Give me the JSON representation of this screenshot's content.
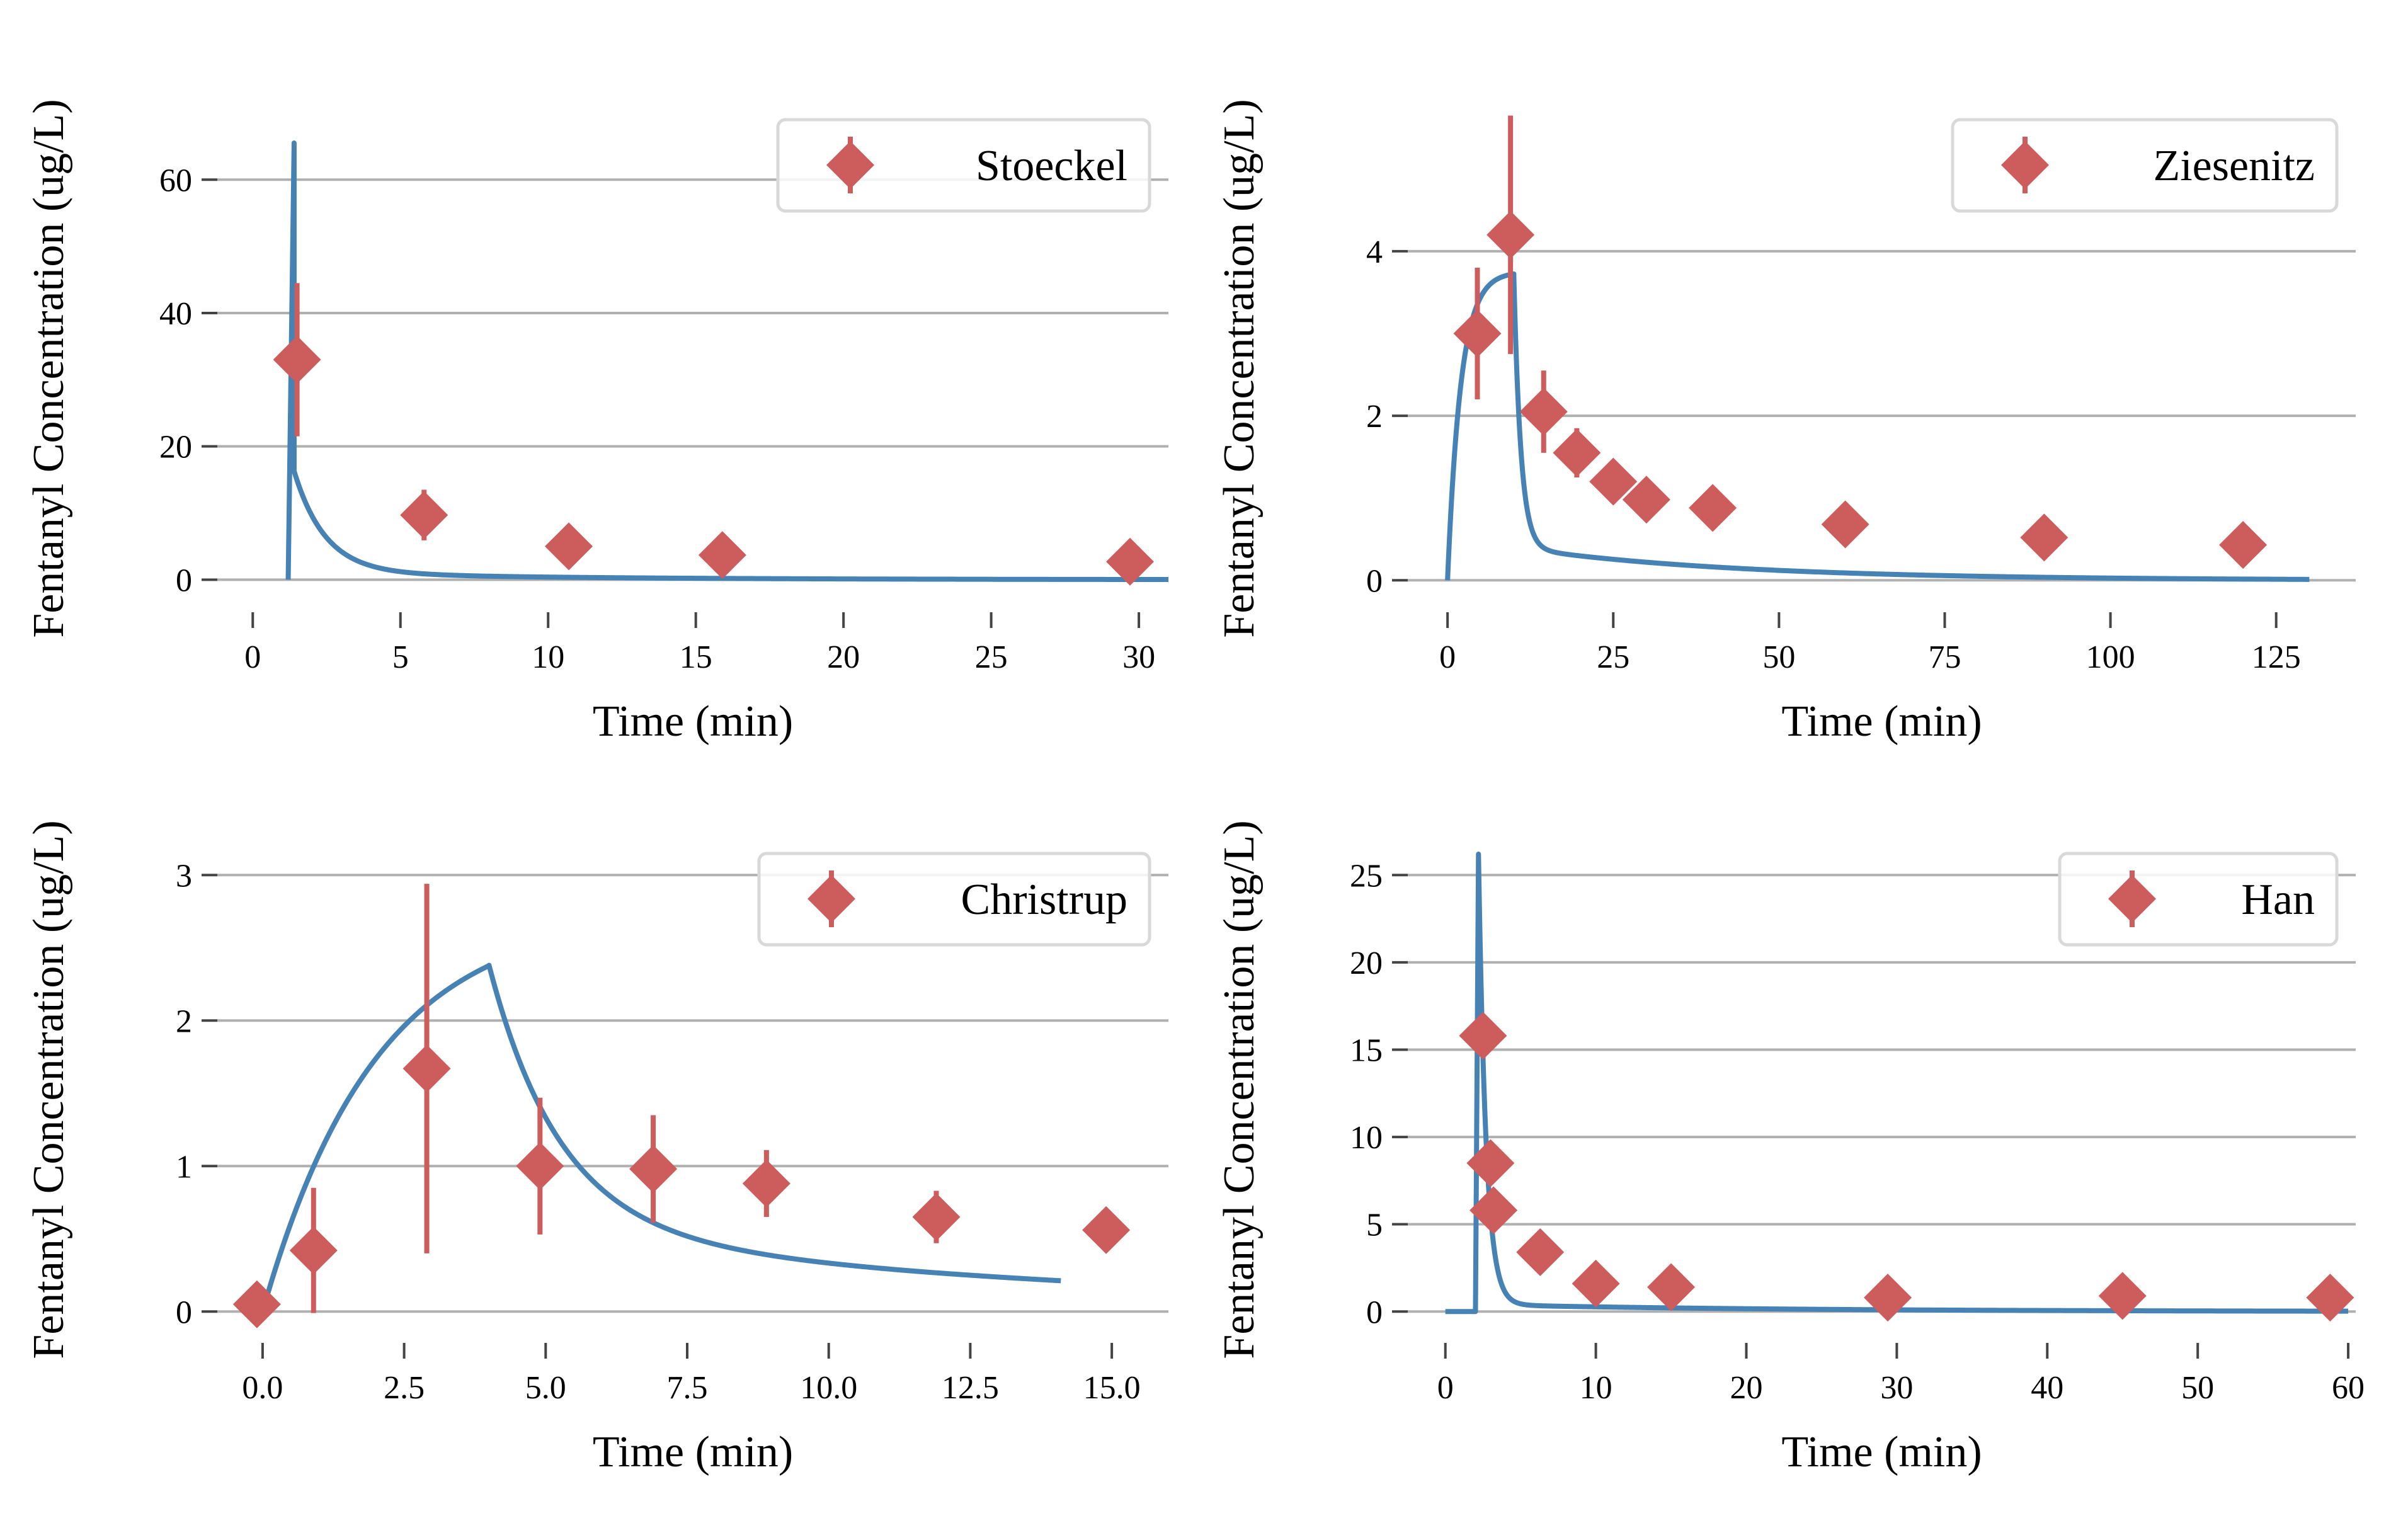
{
  "colors": {
    "model_line": "#4682b4",
    "observed_marker": "#cd5c5c",
    "gridline": "#b0b0b0",
    "axis_tick": "#444444",
    "legend_border": "#d9d9d9"
  },
  "chart_data": [
    {
      "type": "line",
      "xlabel": "Time (min)",
      "ylabel": "Fentanyl Concentration (ug/L)",
      "xlim": [
        -1.2,
        31
      ],
      "ylim": [
        -2.8,
        69
      ],
      "xticks": [
        0,
        5,
        10,
        15,
        20,
        25,
        30
      ],
      "xtick_labels": [
        "0",
        "5",
        "10",
        "15",
        "20",
        "25",
        "30"
      ],
      "yticks": [
        0,
        20,
        40,
        60
      ],
      "ytick_labels": [
        "0",
        "20",
        "40",
        "60"
      ],
      "grid": "y-major",
      "legend": {
        "position": "upper-right",
        "entries": [
          "Stoeckel"
        ]
      },
      "model": {
        "kind": "bolus",
        "t0": 1.2,
        "tpeak": 1.4,
        "peak": 65.5,
        "end": 31,
        "decay": [
          [
            15.2,
            0.95
          ],
          [
            1.1,
            0.12
          ]
        ],
        "x": [
          1.2,
          1.4,
          1.6,
          2,
          3,
          5,
          8,
          10,
          15,
          20,
          25,
          30,
          31
        ],
        "y": [
          0,
          65.5,
          27.9,
          19.1,
          9.4,
          2.6,
          0.83,
          0.64,
          0.38,
          0.25,
          0.18,
          0.12,
          0.11
        ]
      },
      "observed": {
        "name": "Stoeckel",
        "x": [
          1.5,
          5.8,
          10.7,
          15.9,
          29.7
        ],
        "y": [
          33,
          9.7,
          5.0,
          3.7,
          2.7
        ],
        "err": [
          11.5,
          3.8,
          1.5,
          1.2,
          0.6
        ]
      }
    },
    {
      "type": "line",
      "xlabel": "Time (min)",
      "ylabel": "Fentanyl Concentration (ug/L)",
      "xlim": [
        -6,
        137
      ],
      "ylim": [
        -0.22,
        5.6
      ],
      "xticks": [
        0,
        25,
        50,
        75,
        100,
        125
      ],
      "xtick_labels": [
        "0",
        "25",
        "50",
        "75",
        "100",
        "125"
      ],
      "yticks": [
        0,
        2,
        4
      ],
      "ytick_labels": [
        "0",
        "2",
        "4"
      ],
      "grid": "y-major",
      "legend": {
        "position": "upper-right",
        "entries": [
          "Ziesenitz"
        ]
      },
      "model": {
        "kind": "infusion",
        "t0": 0,
        "tend": 10,
        "plateau": 3.75,
        "rise": 0.5,
        "end": 130,
        "decay": [
          [
            3.3,
            0.95
          ],
          [
            0.4,
            0.03
          ]
        ],
        "x": [
          0,
          2,
          5,
          8,
          10,
          12,
          15,
          20,
          30,
          50,
          75,
          100,
          130
        ],
        "y": [
          0,
          2.4,
          3.4,
          3.6,
          3.7,
          1.05,
          0.42,
          0.33,
          0.25,
          0.13,
          0.08,
          0.06,
          0.05
        ]
      },
      "observed": {
        "name": "Ziesenitz",
        "x": [
          4.5,
          9.5,
          14.5,
          19.5,
          25,
          30,
          40,
          60,
          90,
          120
        ],
        "y": [
          3.0,
          4.2,
          2.05,
          1.55,
          1.2,
          0.98,
          0.88,
          0.68,
          0.52,
          0.43
        ],
        "err": [
          0.8,
          1.45,
          0.5,
          0.3,
          0.25,
          0.15,
          0.1,
          0.08,
          0.07,
          0.05
        ]
      }
    },
    {
      "type": "line",
      "xlabel": "Time (min)",
      "ylabel": "Fentanyl Concentration (ug/L)",
      "xlim": [
        -0.8,
        16
      ],
      "ylim": [
        -0.12,
        3.3
      ],
      "xticks": [
        0,
        2.5,
        5,
        7.5,
        10,
        12.5,
        15
      ],
      "xtick_labels": [
        "0.0",
        "2.5",
        "5.0",
        "7.5",
        "10.0",
        "12.5",
        "15.0"
      ],
      "yticks": [
        0,
        1,
        2,
        3
      ],
      "ytick_labels": [
        "0",
        "1",
        "2",
        "3"
      ],
      "grid": "y-major",
      "legend": {
        "position": "upper-right",
        "entries": [
          "Christrup"
        ]
      },
      "model": {
        "kind": "infusion",
        "t0": 0,
        "tend": 4,
        "plateau": 2.75,
        "rise": 0.5,
        "end": 14.1,
        "decay": [
          [
            1.8,
            0.8
          ],
          [
            0.58,
            0.1
          ]
        ],
        "x": [
          0,
          0.5,
          1,
          2,
          3,
          4,
          5,
          6,
          7,
          8,
          10,
          12,
          14.1
        ],
        "y": [
          0,
          0.6,
          1.1,
          1.74,
          2.13,
          2.38,
          1.35,
          0.79,
          0.5,
          0.34,
          0.19,
          0.12,
          0.09
        ]
      },
      "observed": {
        "name": "Christrup",
        "x": [
          -0.1,
          0.9,
          2.9,
          4.9,
          6.9,
          8.9,
          11.9,
          14.9
        ],
        "y": [
          0.05,
          0.42,
          1.67,
          1.0,
          0.98,
          0.88,
          0.65,
          0.56
        ],
        "err": [
          0.0,
          0.43,
          1.27,
          0.47,
          0.37,
          0.23,
          0.18,
          0.0
        ]
      }
    },
    {
      "type": "line",
      "xlabel": "Time (min)",
      "ylabel": "Fentanyl Concentration (ug/L)",
      "xlim": [
        -2.5,
        60.5
      ],
      "ylim": [
        -1.0,
        27.5
      ],
      "xticks": [
        0,
        10,
        20,
        30,
        40,
        50,
        60
      ],
      "xtick_labels": [
        "0",
        "10",
        "20",
        "30",
        "40",
        "50",
        "60"
      ],
      "yticks": [
        0,
        5,
        10,
        15,
        20,
        25
      ],
      "ytick_labels": [
        "0",
        "5",
        "10",
        "15",
        "20",
        "25"
      ],
      "grid": "y-major",
      "legend": {
        "position": "upper-right",
        "entries": [
          "Han"
        ]
      },
      "model": {
        "kind": "bolus",
        "t0": 2,
        "tpeak": 2.2,
        "peak": 26.2,
        "end": 60,
        "decay": [
          [
            25.8,
            2.0
          ],
          [
            0.4,
            0.05
          ]
        ],
        "pre_start": 0,
        "x": [
          0,
          2,
          2.2,
          2.5,
          3,
          4,
          6,
          10,
          20,
          30,
          40,
          50,
          60
        ],
        "y": [
          0,
          0,
          26.2,
          14.5,
          5.8,
          1.3,
          0.37,
          0.29,
          0.18,
          0.11,
          0.07,
          0.04,
          0.02
        ]
      },
      "observed": {
        "name": "Han",
        "x": [
          2.5,
          3.0,
          3.2,
          6.3,
          10.0,
          15.0,
          29.4,
          45.0,
          58.8
        ],
        "y": [
          15.8,
          8.5,
          5.8,
          3.4,
          1.6,
          1.4,
          0.8,
          0.9,
          0.8
        ],
        "err": [
          0,
          0,
          0,
          0,
          0,
          0,
          0,
          0,
          0
        ]
      }
    }
  ]
}
